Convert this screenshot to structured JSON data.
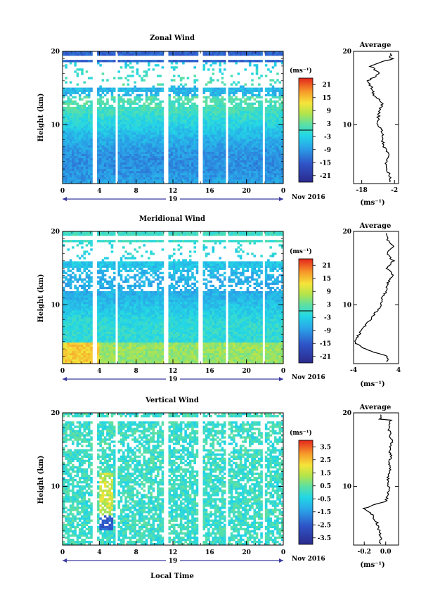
{
  "footer_label": "Local Time",
  "day_label": "19",
  "date_label": "Nov 2016",
  "x_ticks": [
    "0",
    "4",
    "8",
    "12",
    "16",
    "20",
    "0"
  ],
  "panels": [
    {
      "title": "Zonal Wind",
      "ylabel": "Height (km)",
      "y_ticks": [
        "10",
        "20"
      ],
      "unit_label": "(ms⁻¹)",
      "colorbar_ticks": [
        "21",
        "15",
        "9",
        "3",
        "-3",
        "-9",
        "-15",
        "-21"
      ],
      "average": {
        "title": "Average",
        "xticks": [
          "-18",
          "-2"
        ],
        "xlabel": "(ms⁻¹)",
        "y_ticks": [
          "10",
          "20"
        ]
      }
    },
    {
      "title": "Meridional Wind",
      "ylabel": "Height (km)",
      "y_ticks": [
        "10",
        "20"
      ],
      "unit_label": "(ms⁻¹)",
      "colorbar_ticks": [
        "21",
        "15",
        "9",
        "3",
        "-3",
        "-9",
        "-15",
        "-21"
      ],
      "average": {
        "title": "Average",
        "xticks": [
          "-4",
          "4"
        ],
        "xlabel": "(ms⁻¹)",
        "y_ticks": [
          "10",
          "20"
        ]
      }
    },
    {
      "title": "Vertical Wind",
      "ylabel": "Height (km)",
      "y_ticks": [
        "10",
        "20"
      ],
      "unit_label": "(ms⁻¹)",
      "colorbar_ticks": [
        "3.5",
        "2.5",
        "1.5",
        "0.5",
        "-0.5",
        "-1.5",
        "-2.5",
        "-3.5"
      ],
      "average": {
        "title": "Average",
        "xticks": [
          "-0.2",
          "0.0"
        ],
        "xlabel": "(ms⁻¹)",
        "y_ticks": [
          "10",
          "20"
        ]
      }
    }
  ],
  "chart_data": [
    {
      "type": "heatmap",
      "title": "Zonal Wind",
      "ylabel": "Height (km)",
      "x_range_hours": [
        0,
        24
      ],
      "ylim": [
        2,
        20
      ],
      "colorbar_range": [
        -24,
        24
      ],
      "gaps_hours": [
        [
          3.3,
          3.7
        ],
        [
          5.7,
          6.0
        ],
        [
          11.0,
          11.6
        ],
        [
          14.8,
          15.2
        ],
        [
          17.7,
          18.0
        ],
        [
          21.8,
          22.1
        ]
      ],
      "height_km": [
        3,
        4,
        5,
        6,
        7,
        8,
        9,
        10,
        11,
        12,
        13,
        14,
        15,
        16,
        17,
        18,
        19
      ],
      "mean_profile_ms": [
        -4,
        -6,
        -6,
        -5,
        -7,
        -8,
        -8,
        -10,
        -10,
        -9,
        -8,
        -12,
        -13,
        -15,
        -9,
        -14,
        -3
      ]
    },
    {
      "type": "heatmap",
      "title": "Meridional Wind",
      "ylabel": "Height (km)",
      "x_range_hours": [
        0,
        24
      ],
      "ylim": [
        2,
        20
      ],
      "colorbar_range": [
        -24,
        24
      ],
      "gaps_hours": [
        [
          3.3,
          3.7
        ],
        [
          5.7,
          6.0
        ],
        [
          11.0,
          11.6
        ],
        [
          14.8,
          15.2
        ],
        [
          17.7,
          18.0
        ],
        [
          21.8,
          22.1
        ]
      ],
      "height_km": [
        3,
        4,
        5,
        6,
        7,
        8,
        9,
        10,
        11,
        12,
        13,
        14,
        15,
        16,
        17,
        18,
        19
      ],
      "mean_profile_ms": [
        2,
        -2,
        -4,
        -3,
        -2,
        -1,
        0,
        1,
        1,
        2,
        2,
        3,
        2,
        3,
        2,
        3,
        2
      ]
    },
    {
      "type": "heatmap",
      "title": "Vertical Wind",
      "ylabel": "Height (km)",
      "x_range_hours": [
        0,
        24
      ],
      "ylim": [
        2,
        20
      ],
      "colorbar_range": [
        -4,
        4
      ],
      "gaps_hours": [
        [
          3.3,
          3.7
        ],
        [
          5.7,
          6.0
        ],
        [
          11.0,
          11.6
        ],
        [
          14.8,
          15.2
        ],
        [
          17.7,
          18.0
        ],
        [
          21.8,
          22.1
        ]
      ],
      "height_km": [
        3,
        4,
        5,
        6,
        7,
        8,
        9,
        10,
        11,
        12,
        13,
        14,
        15,
        16,
        17,
        18,
        19
      ],
      "mean_profile_ms": [
        -0.05,
        -0.06,
        -0.08,
        -0.12,
        -0.2,
        0.0,
        0.02,
        0.03,
        0.02,
        0.04,
        0.03,
        0.05,
        0.03,
        0.06,
        0.04,
        0.03,
        0.05
      ]
    }
  ]
}
